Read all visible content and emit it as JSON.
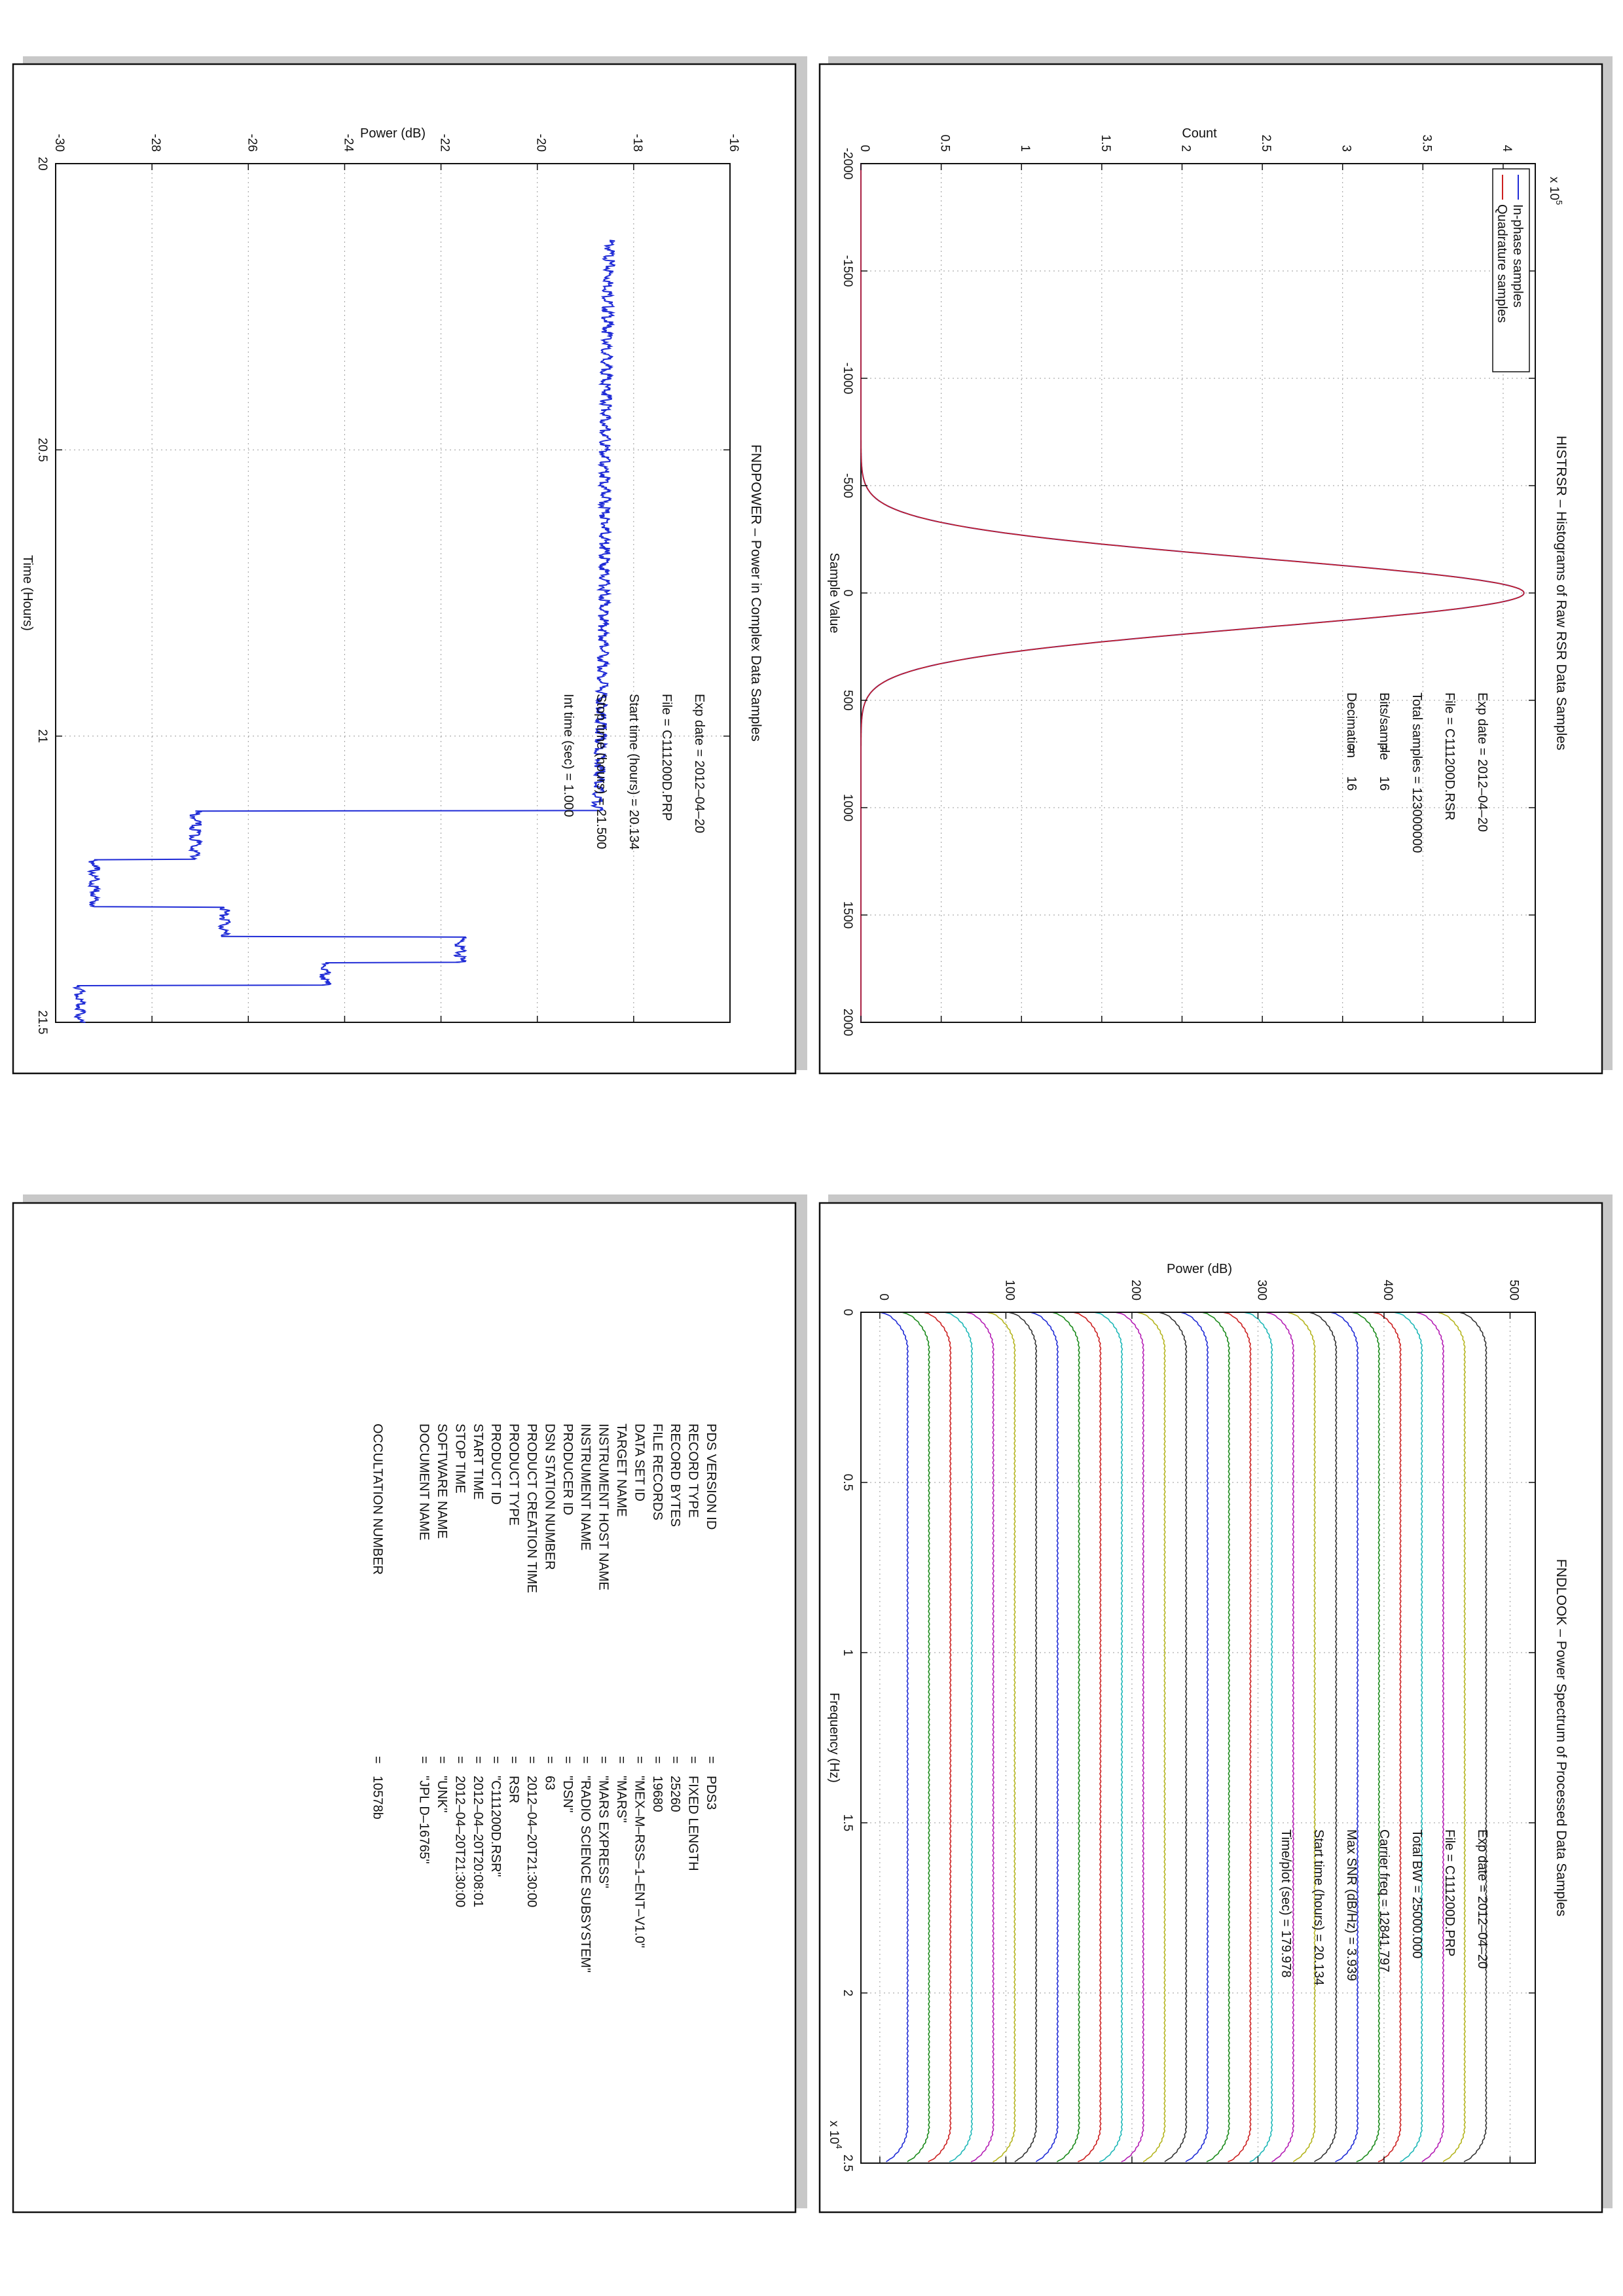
{
  "chart_data": [
    {
      "type": "line",
      "title": "HISTRSR – Histograms of Raw RSR Data Samples",
      "xlabel": "Sample Value",
      "ylabel": "Count",
      "xlim": [
        -2000,
        2000
      ],
      "ylim": [
        0,
        4.2
      ],
      "y_exponent": "x 10^5",
      "y_exponent_base": "x 10",
      "y_exponent_power": "5",
      "x_ticks": [
        "-2000",
        "-1500",
        "-1000",
        "-500",
        "0",
        "500",
        "1000",
        "1500",
        "2000"
      ],
      "y_ticks": [
        "0",
        "0.5",
        "1",
        "1.5",
        "2",
        "2.5",
        "3",
        "3.5",
        "4"
      ],
      "grid": true,
      "legend": "top-left",
      "series": [
        {
          "name": "In-phase samples",
          "color": "#1f2bd6",
          "shape": "gaussian",
          "peak": 4.13,
          "mean": 0,
          "sigma": 160
        },
        {
          "name": "Quadrature samples",
          "color": "#cc1f1f",
          "shape": "gaussian",
          "peak": 4.13,
          "mean": 0,
          "sigma": 160
        }
      ],
      "annotations": [
        {
          "label": "Exp date =",
          "value": "2012–04–20"
        },
        {
          "label": "File =",
          "value": "C111200D.RSR"
        },
        {
          "label": "Total samples =",
          "value": "123000000"
        },
        {
          "label": "Bits/sample",
          "eq": "=",
          "value": "16"
        },
        {
          "label": "Decimation",
          "eq": "=",
          "value": "16"
        }
      ]
    },
    {
      "type": "line",
      "title": "FNDPOWER – Power in Complex Data Samples",
      "xlabel": "Time (Hours)",
      "ylabel": "Power (dB)",
      "xlim": [
        20,
        21.5
      ],
      "ylim": [
        -30,
        -16
      ],
      "x_ticks": [
        "20",
        "20.5",
        "21",
        "21.5"
      ],
      "y_ticks": [
        "-30",
        "-28",
        "-26",
        "-24",
        "-22",
        "-20",
        "-18",
        "-16"
      ],
      "grid": true,
      "series": [
        {
          "name": "",
          "color": "#1f2bd6",
          "x": [
            20.134,
            20.3,
            20.5,
            20.7,
            20.9,
            21.05,
            21.13,
            21.131,
            21.215,
            21.216,
            21.298,
            21.299,
            21.35,
            21.351,
            21.395,
            21.396,
            21.435,
            21.436,
            21.5
          ],
          "y": [
            -18.5,
            -18.55,
            -18.6,
            -18.6,
            -18.65,
            -18.7,
            -18.75,
            -27.1,
            -27.1,
            -29.2,
            -29.2,
            -26.5,
            -26.5,
            -21.6,
            -21.6,
            -24.4,
            -24.4,
            -29.5,
            -29.5
          ]
        }
      ],
      "annotations": [
        {
          "label": "Exp date =",
          "value": "2012–04–20"
        },
        {
          "label": "File =",
          "value": "C111200D.PRP"
        },
        {
          "label": "Start time (hours) =",
          "value": "20.134"
        },
        {
          "label": "Stop time (hours) =",
          "value": "21.500"
        },
        {
          "label": "Int time (sec) =",
          "value": "1.000"
        }
      ]
    },
    {
      "type": "line",
      "title": "FNDLOOK – Power Spectrum of Processed Data Samples",
      "xlabel": "Frequency (Hz)",
      "ylabel": "Power (dB)",
      "xlim": [
        0,
        2.5
      ],
      "ylim": [
        -15,
        520
      ],
      "x_exponent": "x 10^4",
      "x_exponent_base": "x 10",
      "x_exponent_power": "4",
      "x_ticks": [
        "0",
        "0.5",
        "1",
        "1.5",
        "2",
        "2.5"
      ],
      "y_ticks": [
        "0",
        "100",
        "200",
        "300",
        "400",
        "500"
      ],
      "grid": true,
      "series_count": 28,
      "series_offset_db": 17,
      "series_colors": [
        "#1f2bd6",
        "#1a8a1a",
        "#cc1f1f",
        "#1fb8b8",
        "#b51fb5",
        "#b5b51f",
        "#333333"
      ],
      "annotations": [
        {
          "label": "Exp date =",
          "value": "2012–04–20"
        },
        {
          "label": "File =",
          "value": "C111200D.PRP"
        },
        {
          "label": "Total BW =",
          "value": "25000.000"
        },
        {
          "label": "Carrier freq =",
          "value": "12841.797"
        },
        {
          "label": "Max SNR (dB/Hz) =",
          "value": "3.939"
        },
        {
          "label": "Start time (hours) =",
          "value": "20.134"
        },
        {
          "label": "Time/plot (sec) =",
          "value": "179.978"
        }
      ]
    }
  ],
  "pds_label": [
    {
      "key": "PDS VERSION ID",
      "value": "PDS3"
    },
    {
      "key": "RECORD TYPE",
      "value": "FIXED LENGTH"
    },
    {
      "key": "RECORD BYTES",
      "value": "25260"
    },
    {
      "key": "FILE RECORDS",
      "value": "19680"
    },
    {
      "key": "DATA SET ID",
      "value": "\"MEX–M–RSS–1–ENT–V1.0\""
    },
    {
      "key": "TARGET NAME",
      "value": "\"MARS\""
    },
    {
      "key": "INSTRUMENT HOST NAME",
      "value": "\"MARS EXPRESS\""
    },
    {
      "key": "INSTRUMENT NAME",
      "value": "\"RADIO SCIENCE SUBSYSTEM\""
    },
    {
      "key": "PRODUCER ID",
      "value": "\"DSN\""
    },
    {
      "key": "DSN STATION NUMBER",
      "value": "63"
    },
    {
      "key": "PRODUCT CREATION TIME",
      "value": "2012–04–20T21:30:00"
    },
    {
      "key": "PRODUCT TYPE",
      "value": "RSR"
    },
    {
      "key": "PRODUCT ID",
      "value": "\"C111200D.RSR\""
    },
    {
      "key": "START TIME",
      "value": "2012–04–20T20:08:01"
    },
    {
      "key": "STOP TIME",
      "value": "2012–04–20T21:30:00"
    },
    {
      "key": "SOFTWARE NAME",
      "value": "\"UNK\""
    },
    {
      "key": "DOCUMENT NAME",
      "value": "\"JPL D–16765\""
    },
    {
      "key": "OCCULTATION NUMBER",
      "value": "10578b"
    }
  ]
}
